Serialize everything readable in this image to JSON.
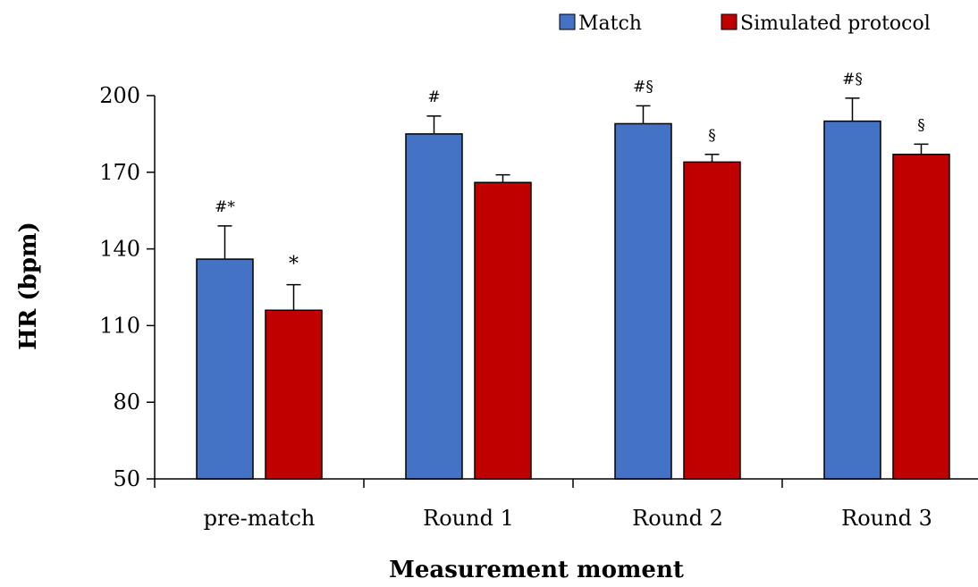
{
  "chart_data": {
    "type": "bar",
    "title": "",
    "xlabel": "Measurement moment",
    "ylabel": "HR (bpm)",
    "ylim": [
      50,
      200
    ],
    "yticks": [
      50,
      80,
      110,
      140,
      170,
      200
    ],
    "categories": [
      "pre-match",
      "Round 1",
      "Round 2",
      "Round 3"
    ],
    "series": [
      {
        "name": "Match",
        "color": "#4472C4",
        "values": [
          136,
          185,
          189,
          190
        ],
        "errors": [
          13,
          7,
          7,
          9
        ],
        "annotations": [
          "#*",
          "#",
          "#§",
          "#§"
        ]
      },
      {
        "name": "Simulated protocol",
        "color": "#C00000",
        "values": [
          116,
          166,
          174,
          177
        ],
        "errors": [
          10,
          3,
          3,
          4
        ],
        "annotations": [
          "*",
          "",
          "§",
          "§"
        ]
      }
    ],
    "legend_position": "top-right",
    "grid": false
  }
}
